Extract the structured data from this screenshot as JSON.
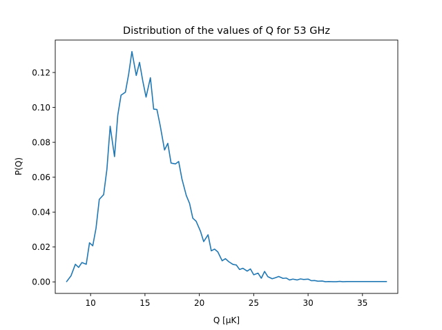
{
  "chart_data": {
    "type": "line",
    "title": "Distribution of the values of Q for 53 GHz",
    "xlabel": "Q [μK]",
    "ylabel": "P(Q)",
    "xlim": [
      6.75,
      38.25
    ],
    "ylim": [
      -0.0066,
      0.1386
    ],
    "xticks": [
      10,
      15,
      20,
      25,
      30,
      35
    ],
    "xtick_labels": [
      "10",
      "15",
      "20",
      "25",
      "30",
      "35"
    ],
    "yticks": [
      0.0,
      0.02,
      0.04,
      0.06,
      0.08,
      0.1,
      0.12
    ],
    "ytick_labels": [
      "0.00",
      "0.02",
      "0.04",
      "0.06",
      "0.08",
      "0.10",
      "0.12"
    ],
    "grid": false,
    "line_color": "#1f77b4",
    "series": [
      {
        "x": [
          7.8,
          8.2,
          8.6,
          8.9,
          9.2,
          9.6,
          9.9,
          10.2,
          10.5,
          10.8,
          11.2,
          11.5,
          11.8,
          12.2,
          12.5,
          12.8,
          13.2,
          13.5,
          13.8,
          14.2,
          14.5,
          14.8,
          15.1,
          15.5,
          15.8,
          16.1,
          16.4,
          16.8,
          17.1,
          17.4,
          17.8,
          18.1,
          18.4,
          18.8,
          19.1,
          19.4,
          19.7,
          20.1,
          20.4,
          20.8,
          21.1,
          21.4,
          21.7,
          22.1,
          22.4,
          22.7,
          23.1,
          23.4,
          23.7,
          24.0,
          24.4,
          24.7,
          25.0,
          25.4,
          25.7,
          26.0,
          26.3,
          26.7,
          27.0,
          27.3,
          27.7,
          28.0,
          28.3,
          28.6,
          29.0,
          29.3,
          29.6,
          30.0,
          30.3,
          30.6,
          30.9,
          31.3,
          31.6,
          31.9,
          32.3,
          32.6,
          32.9,
          33.2,
          33.6,
          33.9,
          34.2,
          34.6,
          34.9,
          35.2,
          35.5,
          35.9,
          36.2,
          36.5,
          36.8,
          37.2
        ],
        "y": [
          0.0002,
          0.0035,
          0.0101,
          0.0083,
          0.0111,
          0.0101,
          0.0224,
          0.0207,
          0.0308,
          0.0473,
          0.05,
          0.0645,
          0.0892,
          0.0718,
          0.0955,
          0.107,
          0.1087,
          0.119,
          0.132,
          0.1183,
          0.1258,
          0.1151,
          0.1059,
          0.117,
          0.099,
          0.0988,
          0.0896,
          0.0756,
          0.0794,
          0.0681,
          0.0676,
          0.069,
          0.059,
          0.0495,
          0.045,
          0.0365,
          0.0348,
          0.0291,
          0.0231,
          0.027,
          0.0178,
          0.0188,
          0.0172,
          0.0121,
          0.0133,
          0.0116,
          0.01,
          0.0097,
          0.0071,
          0.0078,
          0.0062,
          0.0074,
          0.0041,
          0.005,
          0.0021,
          0.006,
          0.003,
          0.0018,
          0.0024,
          0.0031,
          0.002,
          0.0022,
          0.0011,
          0.0016,
          0.0011,
          0.0017,
          0.0014,
          0.0016,
          0.0007,
          0.0008,
          0.0004,
          0.0005,
          0.0001,
          0.0002,
          0.0001,
          0.0001,
          0.0003,
          0.0001,
          0.0002,
          0.0002,
          0.0002,
          0.0002,
          0.0002,
          0.0002,
          0.0002,
          0.0002,
          0.0002,
          0.0002,
          0.0002,
          0.0002
        ]
      }
    ]
  }
}
